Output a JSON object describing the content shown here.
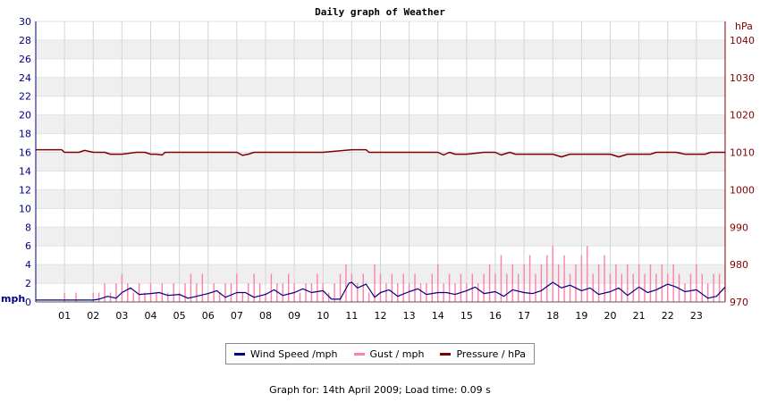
{
  "chart_data": {
    "type": "line",
    "title": "Daily graph of Weather",
    "x_ticks": [
      "01",
      "02",
      "03",
      "04",
      "05",
      "06",
      "07",
      "08",
      "09",
      "10",
      "11",
      "12",
      "13",
      "14",
      "15",
      "16",
      "17",
      "18",
      "19",
      "20",
      "21",
      "22",
      "23"
    ],
    "xlim": [
      0,
      24
    ],
    "y_left": {
      "unit": "mph",
      "ylim": [
        0,
        30
      ],
      "ticks": [
        0,
        2,
        4,
        6,
        8,
        10,
        12,
        14,
        16,
        18,
        20,
        22,
        24,
        26,
        28,
        30
      ]
    },
    "y_right": {
      "unit": "hPa",
      "ylim": [
        970,
        1045
      ],
      "ticks": [
        970,
        980,
        990,
        1000,
        1010,
        1020,
        1030,
        1040
      ]
    },
    "grid": true,
    "legend_placement": "bottom-center",
    "series": [
      {
        "name": "Wind Speed /mph",
        "color": "#000080",
        "axis": "left",
        "x": [
          0,
          0.5,
          1,
          1.5,
          2,
          2.2,
          2.5,
          2.8,
          3,
          3.3,
          3.6,
          4,
          4.3,
          4.6,
          5,
          5.3,
          5.6,
          6,
          6.3,
          6.6,
          7,
          7.3,
          7.6,
          8,
          8.3,
          8.6,
          9,
          9.3,
          9.6,
          10,
          10.3,
          10.6,
          10.9,
          11,
          11.2,
          11.5,
          11.8,
          12,
          12.3,
          12.6,
          13,
          13.3,
          13.6,
          14,
          14.3,
          14.6,
          15,
          15.3,
          15.6,
          16,
          16.3,
          16.6,
          17,
          17.3,
          17.6,
          18,
          18.3,
          18.6,
          19,
          19.3,
          19.6,
          20,
          20.3,
          20.6,
          21,
          21.3,
          21.6,
          22,
          22.3,
          22.6,
          23,
          23.4,
          23.7,
          24
        ],
        "y": [
          0.2,
          0.2,
          0.2,
          0.2,
          0.2,
          0.3,
          0.6,
          0.4,
          1.0,
          1.5,
          0.8,
          0.9,
          1.0,
          0.7,
          0.8,
          0.4,
          0.6,
          0.9,
          1.2,
          0.5,
          1.0,
          1.0,
          0.5,
          0.8,
          1.3,
          0.7,
          1.0,
          1.4,
          1.0,
          1.2,
          0.3,
          0.3,
          2.0,
          2.1,
          1.5,
          1.9,
          0.5,
          1.0,
          1.3,
          0.6,
          1.1,
          1.4,
          0.8,
          1.0,
          1.0,
          0.8,
          1.2,
          1.6,
          0.9,
          1.1,
          0.6,
          1.3,
          1.0,
          0.9,
          1.2,
          2.1,
          1.5,
          1.8,
          1.2,
          1.5,
          0.8,
          1.1,
          1.5,
          0.7,
          1.6,
          1.0,
          1.3,
          1.9,
          1.6,
          1.1,
          1.3,
          0.4,
          0.6,
          1.6
        ]
      },
      {
        "name": "Gust / mph",
        "color": "#ff80a8",
        "axis": "left",
        "x": [
          0.0,
          0.2,
          0.4,
          0.6,
          0.8,
          1.0,
          1.2,
          1.4,
          1.6,
          1.8,
          2.0,
          2.2,
          2.4,
          2.6,
          2.8,
          3.0,
          3.2,
          3.4,
          3.6,
          3.8,
          4.0,
          4.2,
          4.4,
          4.6,
          4.8,
          5.0,
          5.2,
          5.4,
          5.6,
          5.8,
          6.0,
          6.2,
          6.4,
          6.6,
          6.8,
          7.0,
          7.2,
          7.4,
          7.6,
          7.8,
          8.0,
          8.2,
          8.4,
          8.6,
          8.8,
          9.0,
          9.2,
          9.4,
          9.6,
          9.8,
          10.0,
          10.2,
          10.4,
          10.6,
          10.8,
          11.0,
          11.2,
          11.4,
          11.6,
          11.8,
          12.0,
          12.2,
          12.4,
          12.6,
          12.8,
          13.0,
          13.2,
          13.4,
          13.6,
          13.8,
          14.0,
          14.2,
          14.4,
          14.6,
          14.8,
          15.0,
          15.2,
          15.4,
          15.6,
          15.8,
          16.0,
          16.2,
          16.4,
          16.6,
          16.8,
          17.0,
          17.2,
          17.4,
          17.6,
          17.8,
          18.0,
          18.2,
          18.4,
          18.6,
          18.8,
          19.0,
          19.2,
          19.4,
          19.6,
          19.8,
          20.0,
          20.2,
          20.4,
          20.6,
          20.8,
          21.0,
          21.2,
          21.4,
          21.6,
          21.8,
          22.0,
          22.2,
          22.4,
          22.6,
          22.8,
          23.0,
          23.2,
          23.4,
          23.6,
          23.8
        ],
        "y": [
          0,
          0,
          0,
          0,
          0,
          1,
          0,
          1,
          0,
          0,
          1,
          1,
          2,
          1,
          2,
          3,
          2,
          1,
          2,
          1,
          2,
          1,
          2,
          1,
          2,
          1,
          2,
          3,
          2,
          3,
          1,
          2,
          1,
          2,
          2,
          3,
          1,
          2,
          3,
          2,
          1,
          3,
          2,
          2,
          3,
          2,
          1,
          2,
          2,
          3,
          2,
          1,
          2,
          3,
          4,
          3,
          2,
          3,
          1,
          4,
          3,
          2,
          3,
          2,
          3,
          2,
          3,
          2,
          2,
          3,
          4,
          2,
          3,
          2,
          3,
          2,
          3,
          2,
          3,
          4,
          3,
          5,
          3,
          4,
          3,
          4,
          5,
          3,
          4,
          5,
          6,
          4,
          5,
          3,
          4,
          5,
          6,
          3,
          4,
          5,
          3,
          4,
          3,
          4,
          3,
          4,
          3,
          4,
          3,
          4,
          3,
          4,
          3,
          2,
          3,
          4,
          3,
          2,
          3,
          3
        ]
      },
      {
        "name": "Pressure / hPa",
        "color": "#800000",
        "axis": "right",
        "x": [
          0,
          0.9,
          1.0,
          1.5,
          1.7,
          2.0,
          2.4,
          2.6,
          3.0,
          3.5,
          3.8,
          4.0,
          4.2,
          4.4,
          4.5,
          6.0,
          7.0,
          7.2,
          7.4,
          7.6,
          8.0,
          9.0,
          10.0,
          11.0,
          11.2,
          11.5,
          11.6,
          12.0,
          13.0,
          14.0,
          14.2,
          14.4,
          14.6,
          15.0,
          15.6,
          16.0,
          16.2,
          16.5,
          16.7,
          17.0,
          18.0,
          18.3,
          18.6,
          19.0,
          20.0,
          20.3,
          20.6,
          21.0,
          21.4,
          21.6,
          22.0,
          22.3,
          22.6,
          23.0,
          23.3,
          23.5,
          24.0
        ],
        "y": [
          1010.7,
          1010.7,
          1010.0,
          1010.0,
          1010.5,
          1010.0,
          1010.0,
          1009.5,
          1009.5,
          1010.0,
          1010.0,
          1009.5,
          1009.5,
          1009.3,
          1010.0,
          1010.0,
          1010.0,
          1009.2,
          1009.5,
          1010.0,
          1010.0,
          1010.0,
          1010.0,
          1010.7,
          1010.7,
          1010.7,
          1010.0,
          1010.0,
          1010.0,
          1010.0,
          1009.3,
          1010.0,
          1009.5,
          1009.5,
          1010.0,
          1010.0,
          1009.3,
          1010.0,
          1009.5,
          1009.5,
          1009.5,
          1008.8,
          1009.5,
          1009.5,
          1009.5,
          1008.8,
          1009.5,
          1009.5,
          1009.5,
          1010.0,
          1010.0,
          1010.0,
          1009.5,
          1009.5,
          1009.5,
          1010.0,
          1010.0
        ]
      }
    ]
  },
  "footer": "Graph for: 14th April 2009; Load time: 0.09 s"
}
